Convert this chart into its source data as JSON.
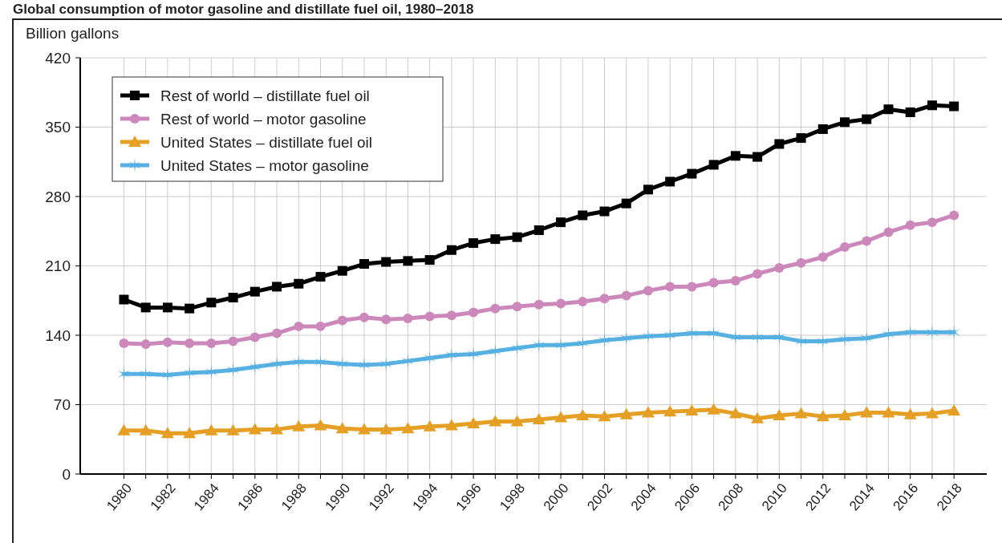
{
  "chart_data": {
    "type": "line",
    "title": "Global consumption of motor gasoline and distillate fuel oil, 1980–2018",
    "ylabel": "Billion gallons",
    "x": [
      1980,
      1981,
      1982,
      1983,
      1984,
      1985,
      1986,
      1987,
      1988,
      1989,
      1990,
      1991,
      1992,
      1993,
      1994,
      1995,
      1996,
      1997,
      1998,
      1999,
      2000,
      2001,
      2002,
      2003,
      2004,
      2005,
      2006,
      2007,
      2008,
      2009,
      2010,
      2011,
      2012,
      2013,
      2014,
      2015,
      2016,
      2017,
      2018
    ],
    "xlim": [
      1978,
      2019.5
    ],
    "xticks": [
      1980,
      {
        "value": 1981,
        "label": null
      },
      1982,
      {
        "value": 1983,
        "label": null
      },
      1984,
      {
        "value": 1985,
        "label": null
      },
      1986,
      {
        "value": 1987,
        "label": null
      },
      1988,
      {
        "value": 1989,
        "label": null
      },
      1990,
      {
        "value": 1991,
        "label": null
      },
      1992,
      {
        "value": 1993,
        "label": null
      },
      1994,
      {
        "value": 1995,
        "label": null
      },
      1996,
      {
        "value": 1997,
        "label": null
      },
      1998,
      {
        "value": 1999,
        "label": null
      },
      2000,
      {
        "value": 2001,
        "label": null
      },
      2002,
      {
        "value": 2003,
        "label": null
      },
      2004,
      {
        "value": 2005,
        "label": null
      },
      2006,
      {
        "value": 2007,
        "label": null
      },
      2008,
      {
        "value": 2009,
        "label": null
      },
      2010,
      {
        "value": 2011,
        "label": null
      },
      2012,
      {
        "value": 2013,
        "label": null
      },
      2014,
      {
        "value": 2015,
        "label": null
      },
      2016,
      {
        "value": 2017,
        "label": null
      },
      2018
    ],
    "ylim": [
      0,
      420
    ],
    "yticks": [
      0,
      70,
      140,
      210,
      280,
      350,
      420
    ],
    "grid": true,
    "legend": "top left",
    "line_style": "solid",
    "series": [
      {
        "name": "Rest of world – distillate fuel oil",
        "color": "#000000",
        "marker": "square",
        "values": [
          176,
          168,
          168,
          167,
          173,
          178,
          184,
          189,
          192,
          199,
          205,
          212,
          214,
          215,
          216,
          226,
          233,
          237,
          239,
          246,
          254,
          261,
          265,
          273,
          287,
          295,
          303,
          312,
          321,
          320,
          333,
          339,
          348,
          355,
          358,
          368,
          365,
          372,
          371
        ]
      },
      {
        "name": "Rest of world – motor gasoline",
        "color": "#cc88bb",
        "marker": "circle",
        "values": [
          132,
          131,
          133,
          132,
          132,
          134,
          138,
          142,
          149,
          149,
          155,
          158,
          156,
          157,
          159,
          160,
          163,
          167,
          169,
          171,
          172,
          174,
          177,
          180,
          185,
          189,
          189,
          193,
          195,
          202,
          208,
          213,
          219,
          229,
          235,
          244,
          251,
          254,
          261
        ]
      },
      {
        "name": "United States – distillate fuel oil",
        "color": "#e59f24",
        "marker": "triangle",
        "values": [
          44,
          44,
          41,
          41,
          44,
          44,
          45,
          45,
          48,
          49,
          46,
          45,
          45,
          46,
          48,
          49,
          51,
          53,
          53,
          55,
          57,
          59,
          58,
          60,
          62,
          63,
          64,
          65,
          61,
          56,
          59,
          61,
          58,
          59,
          62,
          62,
          60,
          61,
          64
        ]
      },
      {
        "name": "United States – motor gasoline",
        "color": "#56b0e2",
        "marker": "cross",
        "values": [
          101,
          101,
          100,
          102,
          103,
          105,
          108,
          111,
          113,
          113,
          111,
          110,
          111,
          114,
          117,
          120,
          121,
          124,
          127,
          130,
          130,
          132,
          135,
          137,
          139,
          140,
          142,
          142,
          138,
          138,
          138,
          134,
          134,
          136,
          137,
          141,
          143,
          143,
          143
        ]
      }
    ]
  }
}
